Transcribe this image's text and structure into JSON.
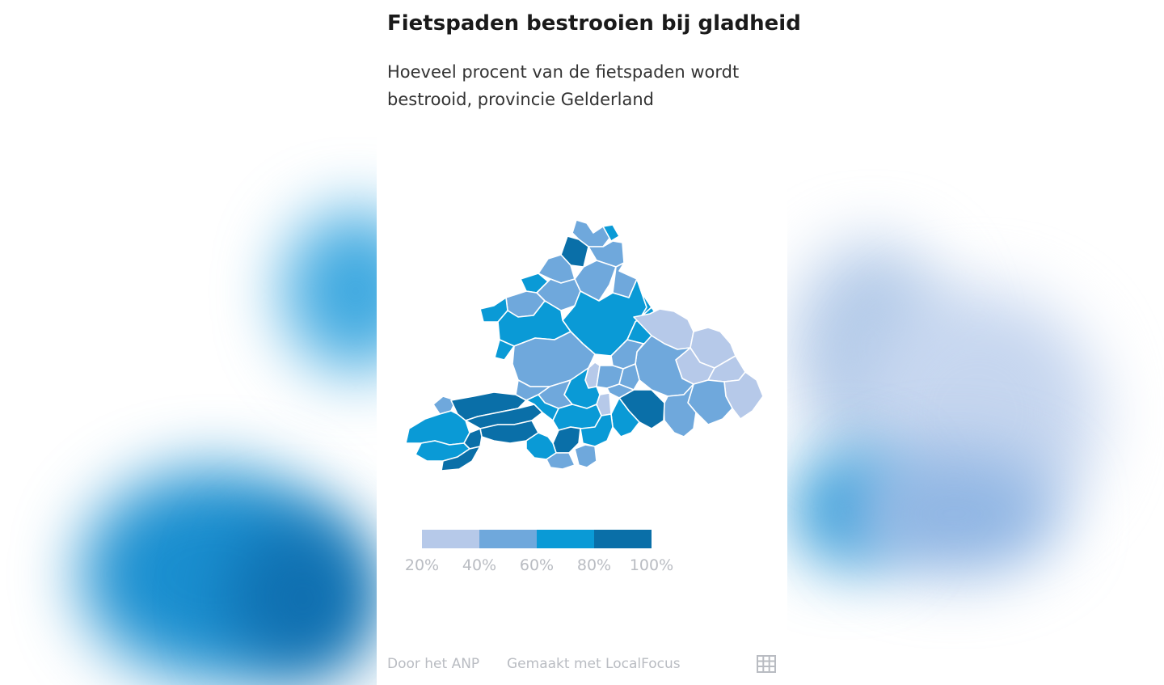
{
  "title": "Fietspaden bestrooien bij gladheid",
  "subtitle": "Hoeveel procent van de fietspaden wordt bestrooid, provincie Gelderland",
  "legend": {
    "colors": [
      "#b6c9e9",
      "#6fa8dc",
      "#0a9ad6",
      "#0a6fa8"
    ],
    "labels": [
      "20%",
      "40%",
      "60%",
      "80%",
      "100%"
    ]
  },
  "footer": {
    "source": "Door het ANP",
    "made_with": "Gemaakt met LocalFocus",
    "table_icon": "table-icon"
  },
  "map": {
    "region": "Gelderland",
    "borders": "#ffffff"
  }
}
